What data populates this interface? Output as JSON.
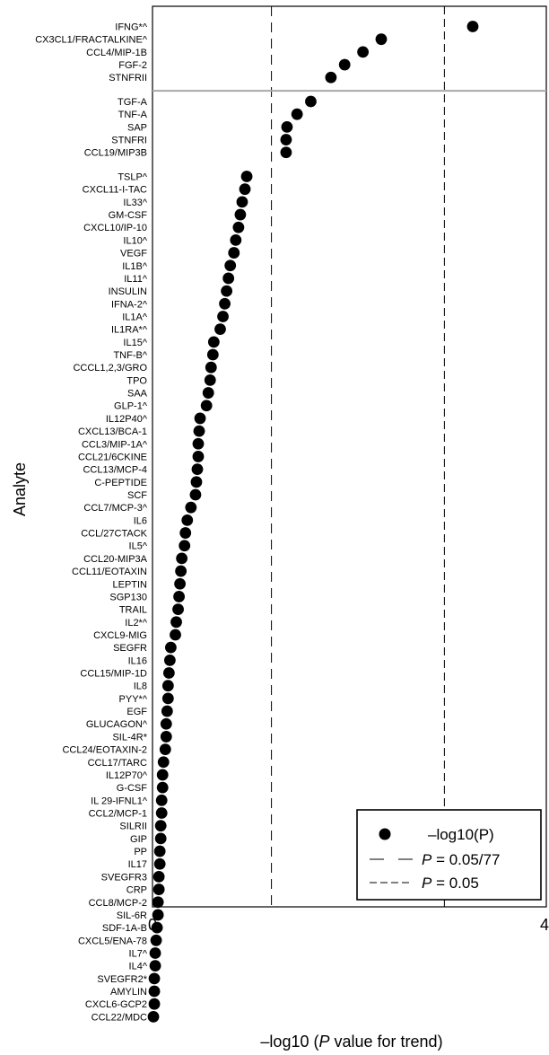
{
  "chart_data": {
    "type": "scatter",
    "orientation": "horizontal",
    "xlabel": "–log10 (P value for trend)",
    "ylabel": "Analyte",
    "xlim": [
      0,
      4
    ],
    "xticks": [
      "0",
      "4"
    ],
    "grid": false,
    "legend_position": "bottom-right",
    "legend": {
      "points": "–log10(P)",
      "line1_prefix": "P",
      "line1_suffix": " = 0.05/77",
      "line2_prefix": "P",
      "line2_suffix": " = 0.05"
    },
    "threshold_lines": [
      {
        "value": 1.3,
        "style": "long-dash"
      },
      {
        "value": 3.19,
        "style": "short-dash"
      }
    ],
    "groups": [
      {
        "categories": [
          "IFNG*^",
          "CX3CL1/FRACTALKINE^",
          "CCL4/MIP-1B",
          "FGF-2",
          "STNFRII"
        ],
        "values": [
          3.5,
          2.5,
          2.3,
          2.1,
          1.95
        ]
      },
      {
        "categories": [
          "TGF-A",
          "TNF-A",
          "SAP",
          "STNFRI",
          "CCL19/MIP3B"
        ],
        "values": [
          1.73,
          1.58,
          1.47,
          1.46,
          1.46
        ]
      },
      {
        "categories": [
          "TSLP^",
          "CXCL11-I-TAC",
          "IL33^",
          "GM-CSF",
          "CXCL10/IP-10",
          "IL10^",
          "VEGF",
          "IL1B^",
          "IL11^",
          "INSULIN",
          "IFNA-2^",
          "IL1A^",
          "IL1RA*^",
          "IL15^",
          "TNF-B^",
          "CCCL1,2,3/GRO",
          "TPO",
          "SAA",
          "GLP-1^",
          "IL12P40^",
          "CXCL13/BCA-1",
          "CCL3/MIP-1A^",
          "CCL21/6CKINE",
          "CCL13/MCP-4",
          "C-PEPTIDE",
          "SCF",
          "CCL7/MCP-3^",
          "IL6",
          "CCL/27CTACK",
          "IL5^",
          "CCL20-MIP3A",
          "CCL11/EOTAXIN",
          "LEPTIN",
          "SGP130",
          "TRAIL",
          "IL2*^",
          "CXCL9-MIG",
          "SEGFR",
          "IL16",
          "CCL15/MIP-1D",
          "IL8",
          "PYY*^",
          "EGF",
          "GLUCAGON^",
          "SIL-4R*",
          "CCL24/EOTAXIN-2",
          "CCL17/TARC",
          "IL12P70^",
          "G-CSF",
          "IL 29-IFNL1^",
          "CCL2/MCP-1",
          "SILRII",
          "GIP",
          "PP",
          "IL17",
          "SVEGFR3",
          "CRP",
          "CCL8/MCP-2",
          "SIL-6R",
          "SDF-1A-B",
          "CXCL5/ENA-78",
          "IL7^",
          "IL4^",
          "SVEGFR2*",
          "AMYLIN",
          "CXCL6-GCP2",
          "CCL22/MDC"
        ],
        "values": [
          1.03,
          1.01,
          0.98,
          0.96,
          0.94,
          0.91,
          0.89,
          0.85,
          0.83,
          0.81,
          0.79,
          0.77,
          0.74,
          0.67,
          0.66,
          0.64,
          0.63,
          0.61,
          0.59,
          0.52,
          0.51,
          0.5,
          0.5,
          0.49,
          0.48,
          0.47,
          0.42,
          0.38,
          0.36,
          0.35,
          0.32,
          0.31,
          0.3,
          0.29,
          0.28,
          0.26,
          0.25,
          0.2,
          0.19,
          0.18,
          0.17,
          0.17,
          0.16,
          0.15,
          0.15,
          0.14,
          0.12,
          0.11,
          0.11,
          0.1,
          0.1,
          0.09,
          0.09,
          0.08,
          0.08,
          0.07,
          0.07,
          0.06,
          0.06,
          0.05,
          0.04,
          0.03,
          0.03,
          0.02,
          0.02,
          0.02,
          0.01
        ]
      }
    ]
  }
}
